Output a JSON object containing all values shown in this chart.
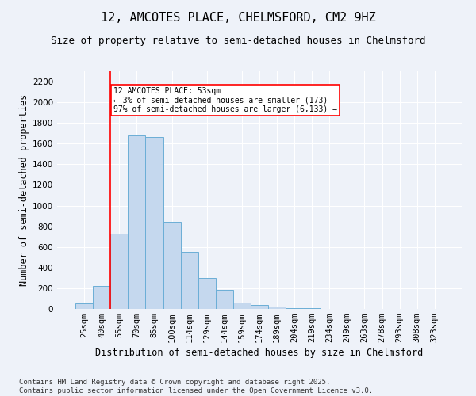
{
  "title": "12, AMCOTES PLACE, CHELMSFORD, CM2 9HZ",
  "subtitle": "Size of property relative to semi-detached houses in Chelmsford",
  "xlabel": "Distribution of semi-detached houses by size in Chelmsford",
  "ylabel": "Number of semi-detached properties",
  "footer_line1": "Contains HM Land Registry data © Crown copyright and database right 2025.",
  "footer_line2": "Contains public sector information licensed under the Open Government Licence v3.0.",
  "categories": [
    "25sqm",
    "40sqm",
    "55sqm",
    "70sqm",
    "85sqm",
    "100sqm",
    "114sqm",
    "129sqm",
    "144sqm",
    "159sqm",
    "174sqm",
    "189sqm",
    "204sqm",
    "219sqm",
    "234sqm",
    "249sqm",
    "263sqm",
    "278sqm",
    "293sqm",
    "308sqm",
    "323sqm"
  ],
  "values": [
    50,
    225,
    730,
    1680,
    1660,
    845,
    555,
    300,
    185,
    65,
    40,
    25,
    10,
    5,
    0,
    0,
    0,
    0,
    0,
    0,
    0
  ],
  "bar_color": "#c5d8ee",
  "bar_edge_color": "#6baed6",
  "vline_color": "red",
  "annotation_text": "12 AMCOTES PLACE: 53sqm\n← 3% of semi-detached houses are smaller (173)\n97% of semi-detached houses are larger (6,133) →",
  "annotation_box_color": "white",
  "annotation_box_edge_color": "red",
  "ylim": [
    0,
    2300
  ],
  "yticks": [
    0,
    200,
    400,
    600,
    800,
    1000,
    1200,
    1400,
    1600,
    1800,
    2000,
    2200
  ],
  "background_color": "#eef2f9",
  "plot_background_color": "#eef2f9",
  "grid_color": "white",
  "title_fontsize": 11,
  "subtitle_fontsize": 9,
  "axis_label_fontsize": 8.5,
  "tick_fontsize": 7.5,
  "footer_fontsize": 6.5
}
